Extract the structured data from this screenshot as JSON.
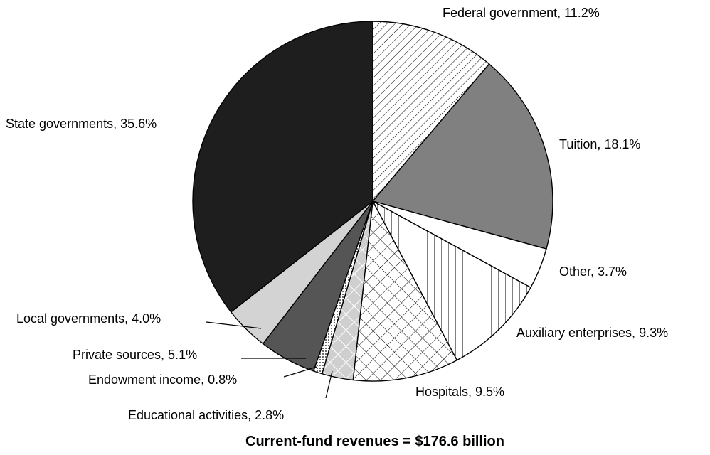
{
  "chart_data": {
    "type": "pie",
    "caption": "Current-fund revenues = $176.6 billion",
    "start": "12 o'clock",
    "direction": "clockwise",
    "slices": [
      {
        "label": "Federal government, 11.2%",
        "name": "Federal government",
        "value": 11.2,
        "fill": "hatch-diagonal"
      },
      {
        "label": "Tuition, 18.1%",
        "name": "Tuition",
        "value": 18.1,
        "fill": "#808080"
      },
      {
        "label": "Other, 3.7%",
        "name": "Other",
        "value": 3.7,
        "fill": "#ffffff"
      },
      {
        "label": "Auxiliary enterprises, 9.3%",
        "name": "Auxiliary enterprises",
        "value": 9.3,
        "fill": "hatch-vertical"
      },
      {
        "label": "Hospitals, 9.5%",
        "name": "Hospitals",
        "value": 9.5,
        "fill": "crosshatch"
      },
      {
        "label": "Educational activities, 2.8%",
        "name": "Educational activities",
        "value": 2.8,
        "fill": "light-crosshatch"
      },
      {
        "label": "Endowment income, 0.8%",
        "name": "Endowment income",
        "value": 0.8,
        "fill": "dots"
      },
      {
        "label": "Private sources, 5.1%",
        "name": "Private sources",
        "value": 5.1,
        "fill": "#555555"
      },
      {
        "label": "Local governments, 4.0%",
        "name": "Local governments",
        "value": 4.0,
        "fill": "#d3d3d3"
      },
      {
        "label": "State governments, 35.6%",
        "name": "State governments",
        "value": 35.6,
        "fill": "#1e1e1e"
      }
    ]
  }
}
